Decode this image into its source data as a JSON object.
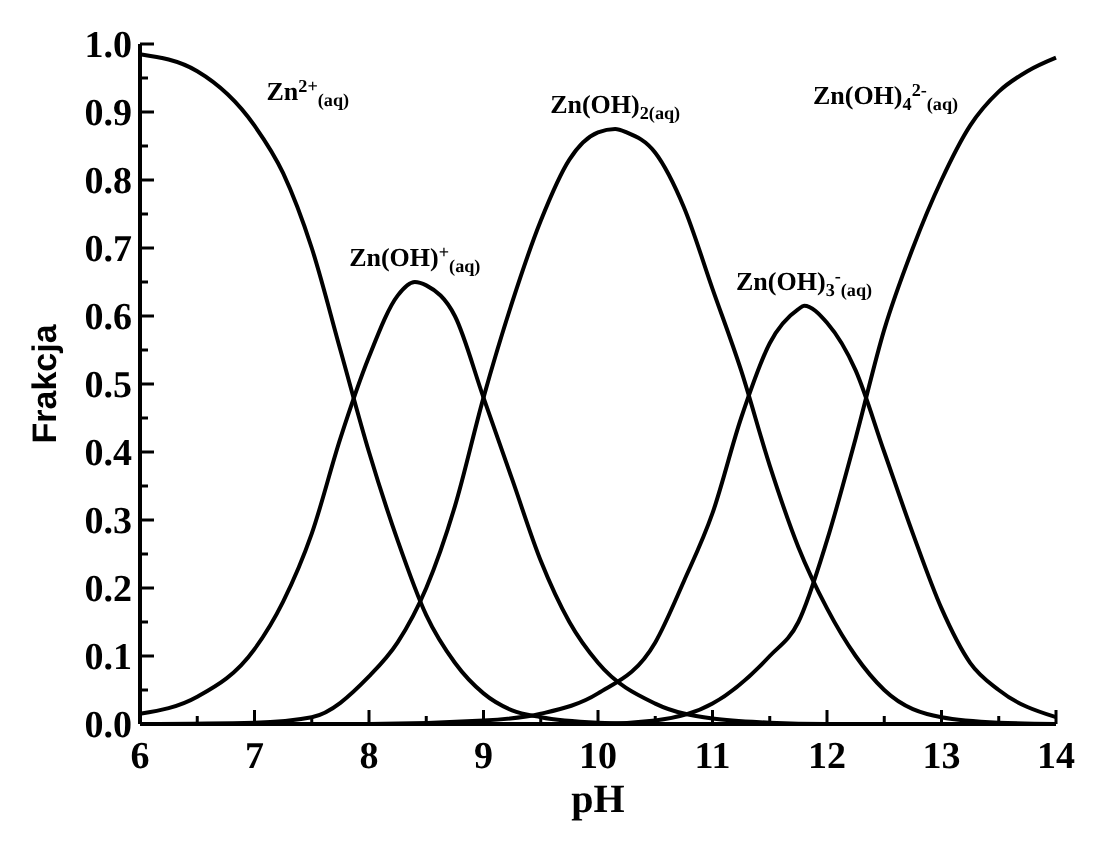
{
  "chart_data": {
    "type": "line",
    "xlabel": "pH",
    "ylabel": "Frakcja",
    "xlim": [
      6,
      14
    ],
    "ylim": [
      0,
      1
    ],
    "xticks": [
      6,
      {
        "value": 6.5,
        "label": null
      },
      7,
      {
        "value": 7.5,
        "label": null
      },
      8,
      {
        "value": 8.5,
        "label": null
      },
      9,
      {
        "value": 9.5,
        "label": null
      },
      10,
      {
        "value": 10.5,
        "label": null
      },
      11,
      {
        "value": 11.5,
        "label": null
      },
      12,
      {
        "value": 12.5,
        "label": null
      },
      13,
      {
        "value": 13.5,
        "label": null
      },
      14
    ],
    "yticks": [
      {
        "value": 0,
        "label": "0.0"
      },
      {
        "value": 0.05,
        "label": null
      },
      0.1,
      {
        "value": 0.15,
        "label": null
      },
      0.2,
      {
        "value": 0.25,
        "label": null
      },
      0.3,
      {
        "value": 0.35,
        "label": null
      },
      0.4,
      {
        "value": 0.45,
        "label": null
      },
      0.5,
      {
        "value": 0.55,
        "label": null
      },
      0.6,
      {
        "value": 0.65,
        "label": null
      },
      0.7,
      {
        "value": 0.75,
        "label": null
      },
      0.8,
      {
        "value": 0.85,
        "label": null
      },
      0.9,
      {
        "value": 0.95,
        "label": null
      },
      {
        "value": 1,
        "label": "1.0"
      }
    ],
    "grid": false,
    "legend": false,
    "marker": "none",
    "line_style": "solid",
    "series": [
      {
        "name": "Zn$^{2+}$$_{(aq)}$",
        "color": "#000000",
        "x": [
          6,
          6.5,
          7,
          7.25,
          7.5,
          7.75,
          8,
          8.25,
          8.5,
          8.75,
          9,
          9.25,
          9.5,
          10,
          10.5,
          11,
          12,
          13,
          14
        ],
        "values": [
          0.985,
          0.96,
          0.88,
          0.81,
          0.7,
          0.55,
          0.4,
          0.27,
          0.16,
          0.09,
          0.045,
          0.02,
          0.01,
          0.002,
          0,
          0,
          0,
          0,
          0
        ]
      },
      {
        "name": "Zn(OH)$^{+}$$_{(aq)}$",
        "color": "#000000",
        "x": [
          6,
          6.5,
          7,
          7.25,
          7.5,
          7.75,
          8,
          8.25,
          8.4,
          8.5,
          8.75,
          9,
          9.25,
          9.5,
          9.75,
          10,
          10.5,
          11,
          11.5,
          12,
          13,
          14
        ],
        "values": [
          0.015,
          0.04,
          0.11,
          0.18,
          0.28,
          0.42,
          0.54,
          0.63,
          0.65,
          0.645,
          0.6,
          0.48,
          0.36,
          0.24,
          0.15,
          0.09,
          0.03,
          0.008,
          0.002,
          0,
          0,
          0
        ]
      },
      {
        "name": "Zn(OH)$_{2(aq)}$",
        "color": "#000000",
        "x": [
          6,
          7,
          7.5,
          8,
          8.25,
          8.5,
          8.75,
          9,
          9.25,
          9.5,
          9.75,
          10,
          10.15,
          10.25,
          10.5,
          10.75,
          11,
          11.25,
          11.5,
          11.75,
          12,
          12.25,
          12.5,
          13,
          13.5,
          14
        ],
        "values": [
          0,
          0.002,
          0.01,
          0.07,
          0.12,
          0.2,
          0.32,
          0.48,
          0.62,
          0.74,
          0.83,
          0.87,
          0.875,
          0.87,
          0.84,
          0.76,
          0.64,
          0.52,
          0.38,
          0.26,
          0.17,
          0.1,
          0.05,
          0.01,
          0.002,
          0
        ]
      },
      {
        "name": "Zn(OH)$_{3}$$^{-}$$_{(aq)}$",
        "color": "#000000",
        "x": [
          6,
          8,
          9,
          9.5,
          10,
          10.5,
          10.75,
          11,
          11.25,
          11.5,
          11.75,
          11.8,
          12,
          12.25,
          12.5,
          12.75,
          13,
          13.25,
          13.5,
          14
        ],
        "values": [
          0,
          0,
          0.005,
          0.015,
          0.045,
          0.12,
          0.21,
          0.31,
          0.45,
          0.56,
          0.61,
          0.615,
          0.59,
          0.52,
          0.4,
          0.28,
          0.17,
          0.09,
          0.05,
          0.01
        ]
      },
      {
        "name": "Zn(OH)$_{4}$$^{2-}$$_{(aq)}$",
        "color": "#000000",
        "x": [
          6,
          10,
          10.5,
          11,
          11.5,
          11.75,
          12,
          12.25,
          12.5,
          12.75,
          13,
          13.25,
          13.5,
          13.75,
          14
        ],
        "values": [
          0,
          0,
          0.005,
          0.03,
          0.1,
          0.15,
          0.27,
          0.42,
          0.58,
          0.7,
          0.8,
          0.88,
          0.93,
          0.96,
          0.98
        ]
      }
    ]
  }
}
